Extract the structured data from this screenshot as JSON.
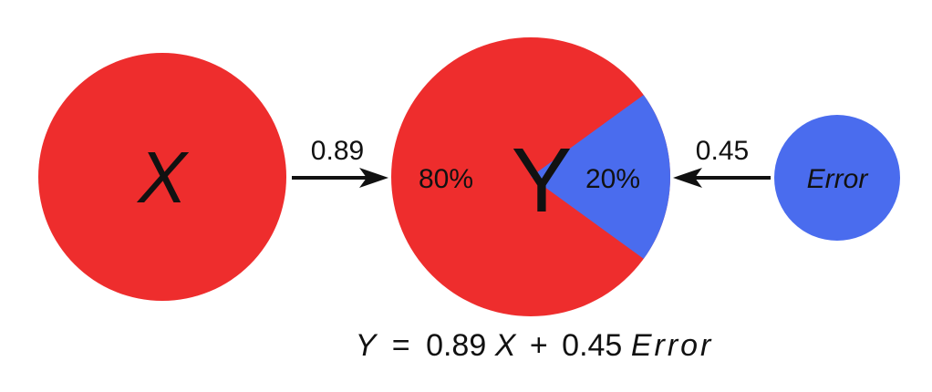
{
  "colors": {
    "red": "#ee2d2d",
    "blue": "#4a6cee",
    "text": "#111111"
  },
  "nodes": {
    "x": {
      "label": "X"
    },
    "y": {
      "label": "Y"
    },
    "error": {
      "label": "Error"
    }
  },
  "edges": {
    "x_to_y": {
      "label": "0.89",
      "value": 0.89
    },
    "error_to_y": {
      "label": "0.45",
      "value": 0.45
    }
  },
  "y_split": {
    "red_label": "80%",
    "blue_label": "20%",
    "blue_fraction": 0.2
  },
  "equation": {
    "lhs": "Y",
    "eq": "=",
    "coef1": "0.89",
    "var1": "X",
    "plus": "+",
    "coef2": "0.45",
    "var2": "Error"
  }
}
